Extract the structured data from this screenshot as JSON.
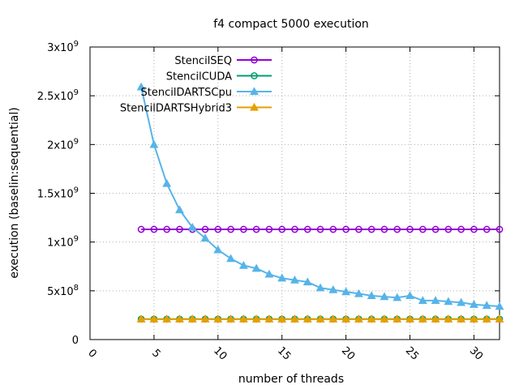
{
  "chart_data": {
    "type": "line",
    "title": "f4 compact 5000 execution",
    "xlabel": "number of threads",
    "ylabel": "execution (baselin:sequential)",
    "xlim": [
      0,
      32
    ],
    "ylim": [
      0,
      3000000000
    ],
    "xticks": [
      0,
      5,
      10,
      15,
      20,
      25,
      30
    ],
    "xtick_labels": [
      "0",
      "5",
      "10",
      "15",
      "20",
      "25",
      "30"
    ],
    "yticks": [
      0,
      500000000,
      1000000000,
      1500000000,
      2000000000,
      2500000000,
      3000000000
    ],
    "ytick_labels": [
      {
        "base": "0",
        "exp": ""
      },
      {
        "base": "5x10",
        "exp": "8"
      },
      {
        "base": "1x10",
        "exp": "9"
      },
      {
        "base": "1.5x10",
        "exp": "9"
      },
      {
        "base": "2x10",
        "exp": "9"
      },
      {
        "base": "2.5x10",
        "exp": "9"
      },
      {
        "base": "3x10",
        "exp": "9"
      }
    ],
    "grid": true,
    "legend_position": "top-left",
    "x": [
      4,
      5,
      6,
      7,
      8,
      9,
      10,
      11,
      12,
      13,
      14,
      15,
      16,
      17,
      18,
      19,
      20,
      21,
      22,
      23,
      24,
      25,
      26,
      27,
      28,
      29,
      30,
      31,
      32
    ],
    "series": [
      {
        "name": "StencilSEQ",
        "color": "#9400d3",
        "marker": "circle",
        "values": [
          1130000000,
          1130000000,
          1130000000,
          1130000000,
          1130000000,
          1130000000,
          1130000000,
          1130000000,
          1130000000,
          1130000000,
          1130000000,
          1130000000,
          1130000000,
          1130000000,
          1130000000,
          1130000000,
          1130000000,
          1130000000,
          1130000000,
          1130000000,
          1130000000,
          1130000000,
          1130000000,
          1130000000,
          1130000000,
          1130000000,
          1130000000,
          1130000000,
          1130000000
        ]
      },
      {
        "name": "StencilCUDA",
        "color": "#009e73",
        "marker": "circle",
        "values": [
          210000000,
          210000000,
          210000000,
          210000000,
          210000000,
          210000000,
          210000000,
          210000000,
          210000000,
          210000000,
          210000000,
          210000000,
          210000000,
          210000000,
          210000000,
          210000000,
          210000000,
          210000000,
          210000000,
          210000000,
          210000000,
          210000000,
          210000000,
          210000000,
          210000000,
          210000000,
          210000000,
          210000000,
          210000000
        ]
      },
      {
        "name": "StencilDARTSCpu",
        "color": "#56b4e9",
        "marker": "triangle",
        "values": [
          2590000000,
          2000000000,
          1600000000,
          1330000000,
          1150000000,
          1040000000,
          920000000,
          830000000,
          760000000,
          730000000,
          670000000,
          630000000,
          610000000,
          590000000,
          530000000,
          510000000,
          490000000,
          470000000,
          450000000,
          440000000,
          430000000,
          450000000,
          400000000,
          400000000,
          390000000,
          380000000,
          360000000,
          350000000,
          340000000
        ]
      },
      {
        "name": "StencilDARTSHybrid3",
        "color": "#e69f00",
        "marker": "triangle",
        "values": [
          210000000,
          210000000,
          210000000,
          210000000,
          210000000,
          210000000,
          210000000,
          210000000,
          210000000,
          210000000,
          210000000,
          210000000,
          210000000,
          210000000,
          210000000,
          210000000,
          210000000,
          210000000,
          210000000,
          210000000,
          210000000,
          210000000,
          210000000,
          210000000,
          210000000,
          210000000,
          210000000,
          210000000,
          210000000
        ]
      }
    ]
  }
}
